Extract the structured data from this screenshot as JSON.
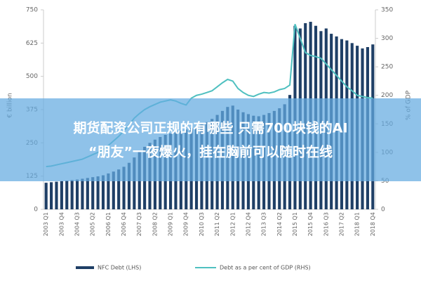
{
  "chart_data": {
    "type": "bar",
    "ylabel": "€ billion",
    "y2label": "% of GDP",
    "categories": [
      "2003 Q1",
      null,
      null,
      "2003 Q4",
      null,
      null,
      "2004 Q3",
      null,
      null,
      "2005 Q2",
      null,
      null,
      "2006 Q1",
      null,
      null,
      "2006 Q4",
      null,
      null,
      "2007 Q3",
      null,
      null,
      "2008 Q2",
      null,
      null,
      "2009 Q1",
      null,
      null,
      "2009 Q4",
      null,
      null,
      "2010 Q3",
      null,
      null,
      "2011 Q2",
      null,
      null,
      "2012 Q1",
      null,
      null,
      "2012 Q4",
      null,
      null,
      "2013 Q3",
      null,
      null,
      "2014 Q2",
      null,
      null,
      "2015 Q1",
      null,
      null,
      "2015 Q4",
      null,
      null,
      "2016 Q3",
      null,
      null,
      "2017 Q2",
      null,
      null,
      "2018 Q1",
      null,
      null,
      "2018 Q4"
    ],
    "series": [
      {
        "name": "NFC Debt (LHS)",
        "type": "bar",
        "color": "#1f3f66",
        "values": [
          100,
          102,
          104,
          106,
          108,
          110,
          112,
          115,
          118,
          121,
          124,
          128,
          135,
          142,
          150,
          160,
          175,
          195,
          215,
          235,
          250,
          262,
          272,
          280,
          285,
          290,
          295,
          300,
          305,
          312,
          320,
          328,
          340,
          355,
          370,
          385,
          390,
          375,
          365,
          358,
          352,
          350,
          355,
          362,
          370,
          380,
          395,
          430,
          690,
          680,
          700,
          705,
          690,
          670,
          680,
          660,
          650,
          640,
          635,
          625,
          615,
          605,
          610,
          620
        ]
      },
      {
        "name": "Debt as a per cent of GDP (RHS)",
        "type": "line",
        "axis": "y2",
        "color": "#4fc0c0",
        "values": [
          75,
          76,
          78,
          80,
          82,
          84,
          86,
          88,
          92,
          96,
          100,
          105,
          112,
          120,
          128,
          138,
          148,
          160,
          168,
          175,
          180,
          184,
          188,
          190,
          192,
          190,
          186,
          183,
          195,
          200,
          202,
          205,
          208,
          215,
          222,
          228,
          225,
          212,
          205,
          200,
          198,
          202,
          205,
          204,
          206,
          210,
          212,
          218,
          325,
          300,
          275,
          270,
          268,
          265,
          255,
          245,
          235,
          225,
          215,
          208,
          200,
          198,
          196,
          195
        ]
      }
    ],
    "ylim": [
      0,
      750
    ],
    "yticks": [
      0,
      125,
      250,
      375,
      500,
      625,
      750
    ],
    "y2lim": [
      0,
      350
    ],
    "y2ticks": [
      0,
      50,
      100,
      150,
      200,
      250,
      300,
      350
    ]
  },
  "banner": {
    "lines": [
      "期货配资公司正规的有哪些 只需700块钱的AI",
      "“朋友”一夜爆火，挂在胸前可以随时在线"
    ]
  }
}
